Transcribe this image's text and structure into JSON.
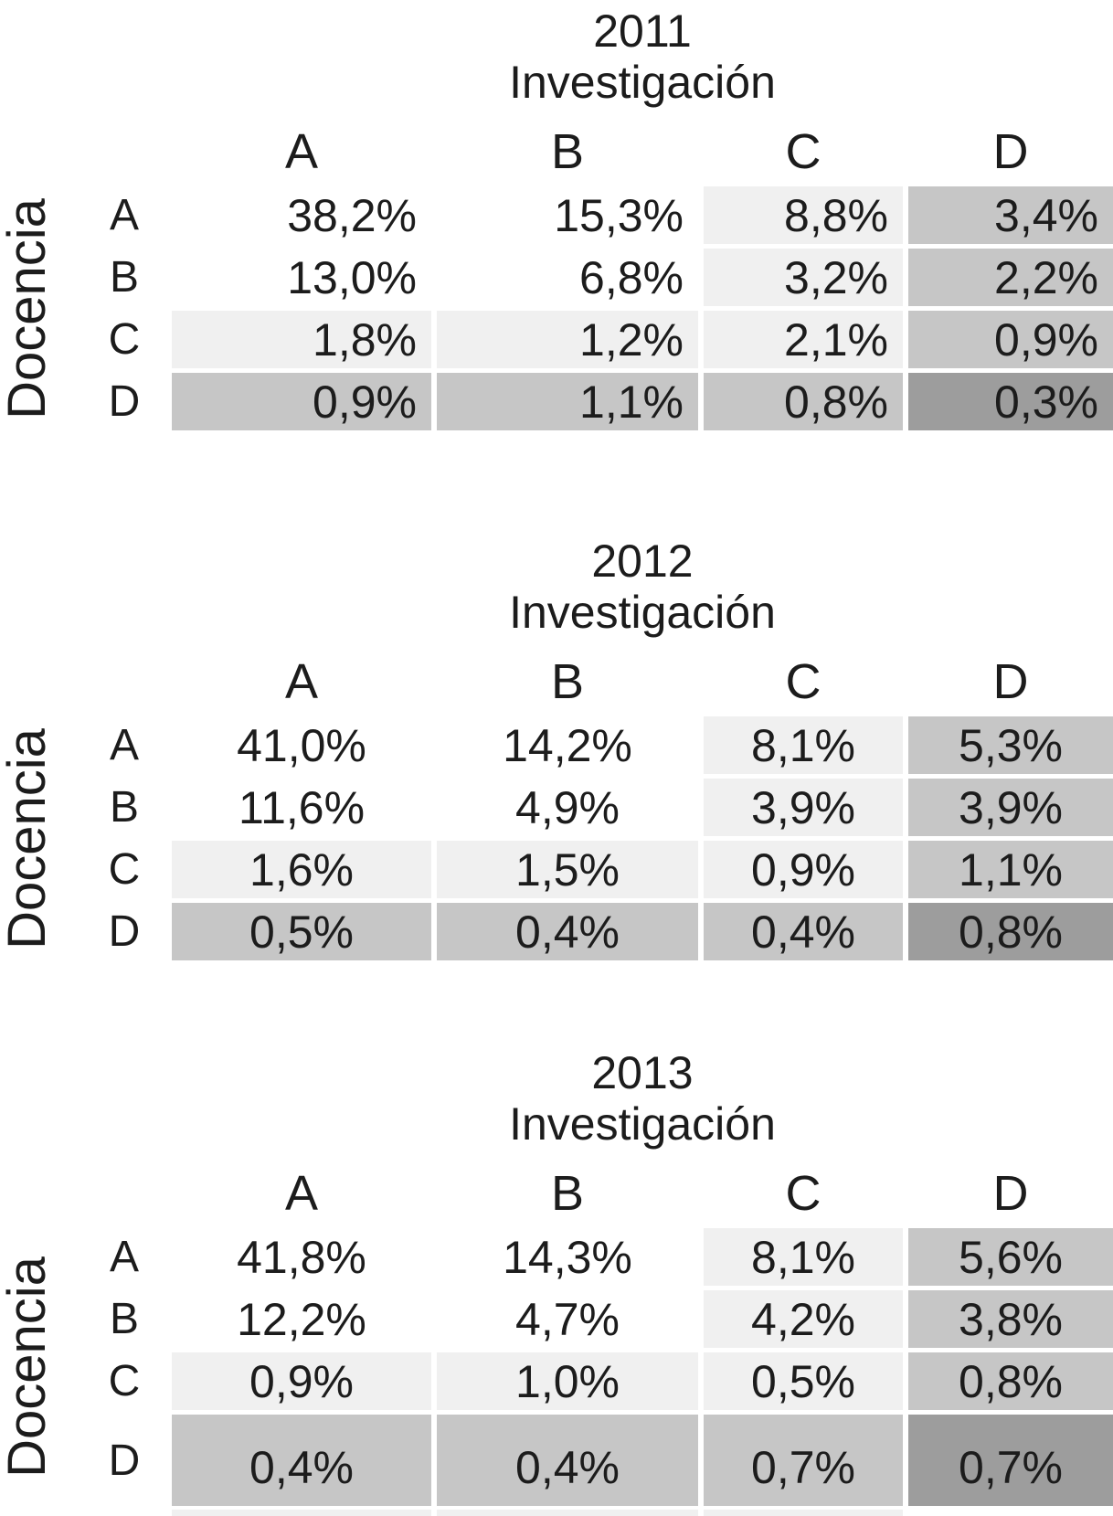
{
  "figure": {
    "row_axis_label": "Docencia",
    "col_axis_label": "Investigación",
    "years": [
      "2011",
      "2012",
      "2013"
    ]
  },
  "colors": {
    "background": "#ffffff",
    "text": "#1c1c1c",
    "cell_light": "#f0f0f0",
    "cell_medium": "#c6c6c6",
    "cell_dark": "#9d9d9d"
  },
  "tables": [
    {
      "year": "2011",
      "subtitle": "Investigación",
      "side_label": "Docencia",
      "col_headers": [
        "A",
        "B",
        "C",
        "D"
      ],
      "row_headers": [
        "A",
        "B",
        "C",
        "D"
      ],
      "rows": [
        [
          "38,2%",
          "15,3%",
          "8,8%",
          "3,4%"
        ],
        [
          "13,0%",
          "6,8%",
          "3,2%",
          "2,2%"
        ],
        [
          "1,8%",
          "1,2%",
          "2,1%",
          "0,9%"
        ],
        [
          "0,9%",
          "1,1%",
          "0,8%",
          "0,3%"
        ]
      ]
    },
    {
      "year": "2012",
      "subtitle": "Investigación",
      "side_label": "Docencia",
      "col_headers": [
        "A",
        "B",
        "C",
        "D"
      ],
      "row_headers": [
        "A",
        "B",
        "C",
        "D"
      ],
      "rows": [
        [
          "41,0%",
          "14,2%",
          "8,1%",
          "5,3%"
        ],
        [
          "11,6%",
          "4,9%",
          "3,9%",
          "3,9%"
        ],
        [
          "1,6%",
          "1,5%",
          "0,9%",
          "1,1%"
        ],
        [
          "0,5%",
          "0,4%",
          "0,4%",
          "0,8%"
        ]
      ]
    },
    {
      "year": "2013",
      "subtitle": "Investigación",
      "side_label": "Docencia",
      "col_headers": [
        "A",
        "B",
        "C",
        "D"
      ],
      "row_headers": [
        "A",
        "B",
        "C",
        "D"
      ],
      "rows": [
        [
          "41,8%",
          "14,3%",
          "8,1%",
          "5,6%"
        ],
        [
          "12,2%",
          "4,7%",
          "4,2%",
          "3,8%"
        ],
        [
          "0,9%",
          "1,0%",
          "0,5%",
          "0,8%"
        ],
        [
          "0,4%",
          "0,4%",
          "0,7%",
          "0,7%"
        ]
      ]
    }
  ]
}
